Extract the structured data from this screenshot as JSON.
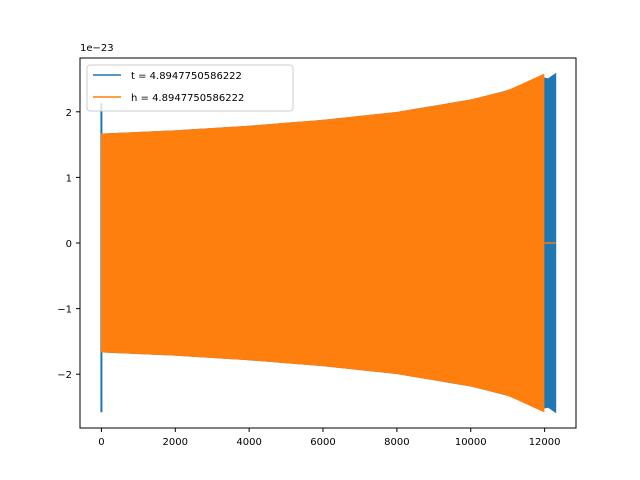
{
  "chart_data": {
    "type": "line",
    "offset_label": "1e−23",
    "x_ticks": [
      "0",
      "2000",
      "4000",
      "6000",
      "8000",
      "10000",
      "12000"
    ],
    "y_ticks": [
      "−2",
      "−1",
      "0",
      "1",
      "2"
    ],
    "xlim": [
      -580,
      12850
    ],
    "ylim": [
      -2.82,
      2.82
    ],
    "legend_position": "upper-left",
    "series": [
      {
        "name": "t = 4.8947750586222",
        "color": "#1f77b4",
        "envelope_x": [
          0,
          2000,
          4000,
          6000,
          8000,
          10000,
          11000,
          11980,
          12040,
          12300
        ],
        "envelope_amp": [
          1.66,
          1.71,
          1.78,
          1.87,
          1.99,
          2.18,
          2.32,
          2.55,
          2.48,
          2.58
        ],
        "initial_spike": [
          2.13,
          -2.58
        ],
        "segments": [
          [
            0,
            12040
          ],
          [
            12040,
            12300
          ]
        ]
      },
      {
        "name": "h = 4.8947750586222",
        "color": "#ff7f0e",
        "envelope_x": [
          0,
          2000,
          4000,
          6000,
          8000,
          10000,
          11000,
          11980
        ],
        "envelope_amp": [
          1.66,
          1.71,
          1.78,
          1.87,
          1.99,
          2.18,
          2.32,
          2.57
        ],
        "zero_tail": [
          12000,
          12300
        ]
      }
    ]
  }
}
